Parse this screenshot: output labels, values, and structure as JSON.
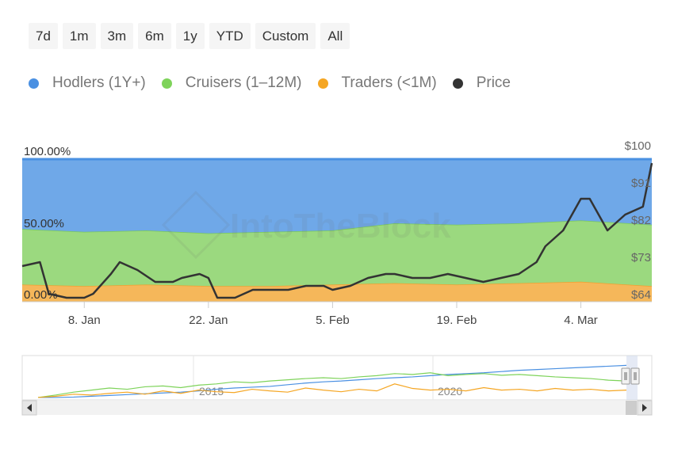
{
  "range_buttons": [
    "7d",
    "1m",
    "3m",
    "6m",
    "1y",
    "YTD",
    "Custom",
    "All"
  ],
  "legend": [
    {
      "label": "Hodlers (1Y+)",
      "color": "#4a90e2"
    },
    {
      "label": "Cruisers (1–12M)",
      "color": "#7ed35a"
    },
    {
      "label": "Traders (<1M)",
      "color": "#f5a623"
    },
    {
      "label": "Price",
      "color": "#333333"
    }
  ],
  "watermark": "IntoTheBlock",
  "chart_data": {
    "type": "area",
    "title": "",
    "stacked": true,
    "x_range": [
      "2024-01-01",
      "2024-03-12"
    ],
    "x_ticks": [
      "8. Jan",
      "22. Jan",
      "5. Feb",
      "19. Feb",
      "4. Mar"
    ],
    "x_tick_dates": [
      "2024-01-08",
      "2024-01-22",
      "2024-02-05",
      "2024-02-19",
      "2024-03-04"
    ],
    "y_left_ticks": [
      "100.00%",
      "50.00%",
      "0.00%"
    ],
    "y_right_ticks": [
      "$100",
      "$91",
      "$82",
      "$73",
      "$64"
    ],
    "y_right_range": [
      64,
      100
    ],
    "colors": {
      "hodlers": "#6fa8e8",
      "cruisers": "#9bd97f",
      "traders": "#f5b75a",
      "price": "#333333"
    },
    "x": [
      "2024-01-01",
      "2024-01-08",
      "2024-01-15",
      "2024-01-22",
      "2024-01-29",
      "2024-02-05",
      "2024-02-12",
      "2024-02-19",
      "2024-02-26",
      "2024-03-04",
      "2024-03-12"
    ],
    "series": [
      {
        "name": "Traders (<1M)",
        "unit": "%",
        "values": [
          12,
          11,
          12,
          11,
          11,
          12,
          13,
          12,
          13,
          14,
          11
        ]
      },
      {
        "name": "Cruisers (1–12M)",
        "unit": "%",
        "values": [
          39,
          38,
          38,
          37,
          38,
          38,
          42,
          42,
          42,
          43,
          43
        ]
      },
      {
        "name": "Hodlers (1Y+)",
        "unit": "%",
        "values": [
          49,
          51,
          50,
          52,
          51,
          50,
          45,
          46,
          45,
          43,
          46
        ]
      }
    ],
    "price": {
      "name": "Price",
      "unit": "$",
      "x": [
        "2024-01-01",
        "2024-01-03",
        "2024-01-04",
        "2024-01-06",
        "2024-01-08",
        "2024-01-09",
        "2024-01-11",
        "2024-01-12",
        "2024-01-14",
        "2024-01-16",
        "2024-01-18",
        "2024-01-19",
        "2024-01-21",
        "2024-01-22",
        "2024-01-23",
        "2024-01-25",
        "2024-01-27",
        "2024-01-29",
        "2024-01-31",
        "2024-02-02",
        "2024-02-04",
        "2024-02-05",
        "2024-02-07",
        "2024-02-09",
        "2024-02-11",
        "2024-02-12",
        "2024-02-14",
        "2024-02-16",
        "2024-02-18",
        "2024-02-20",
        "2024-02-22",
        "2024-02-24",
        "2024-02-26",
        "2024-02-28",
        "2024-02-29",
        "2024-03-02",
        "2024-03-04",
        "2024-03-05",
        "2024-03-07",
        "2024-03-09",
        "2024-03-11",
        "2024-03-12"
      ],
      "values": [
        73,
        74,
        66,
        65,
        65,
        66,
        71,
        74,
        72,
        69,
        69,
        70,
        71,
        70,
        65,
        65,
        67,
        67,
        67,
        68,
        68,
        67,
        68,
        70,
        71,
        71,
        70,
        70,
        71,
        70,
        69,
        70,
        71,
        74,
        78,
        82,
        90,
        90,
        82,
        86,
        88,
        99
      ]
    }
  },
  "navigator": {
    "year_labels": [
      "2015",
      "2020"
    ],
    "series": [
      {
        "name": "Hodlers (1Y+)",
        "values": [
          2,
          2,
          3,
          5,
          7,
          9,
          11,
          13,
          15,
          18,
          22,
          25,
          27,
          29,
          33,
          37,
          40,
          42,
          45,
          48,
          50,
          52,
          55,
          58,
          60,
          62,
          65,
          68,
          70,
          72,
          74,
          76,
          78,
          80
        ]
      },
      {
        "name": "Cruisers (1–12M)",
        "values": [
          2,
          8,
          15,
          20,
          25,
          22,
          28,
          30,
          26,
          32,
          35,
          40,
          38,
          42,
          45,
          48,
          50,
          48,
          52,
          55,
          60,
          58,
          62,
          55,
          58,
          60,
          56,
          58,
          55,
          52,
          50,
          48,
          44,
          42
        ]
      },
      {
        "name": "Traders (<1M)",
        "values": [
          2,
          5,
          10,
          8,
          12,
          15,
          10,
          18,
          12,
          20,
          16,
          14,
          22,
          18,
          15,
          25,
          20,
          16,
          22,
          18,
          35,
          24,
          20,
          22,
          18,
          26,
          20,
          22,
          18,
          24,
          20,
          22,
          18,
          20
        ]
      }
    ]
  }
}
